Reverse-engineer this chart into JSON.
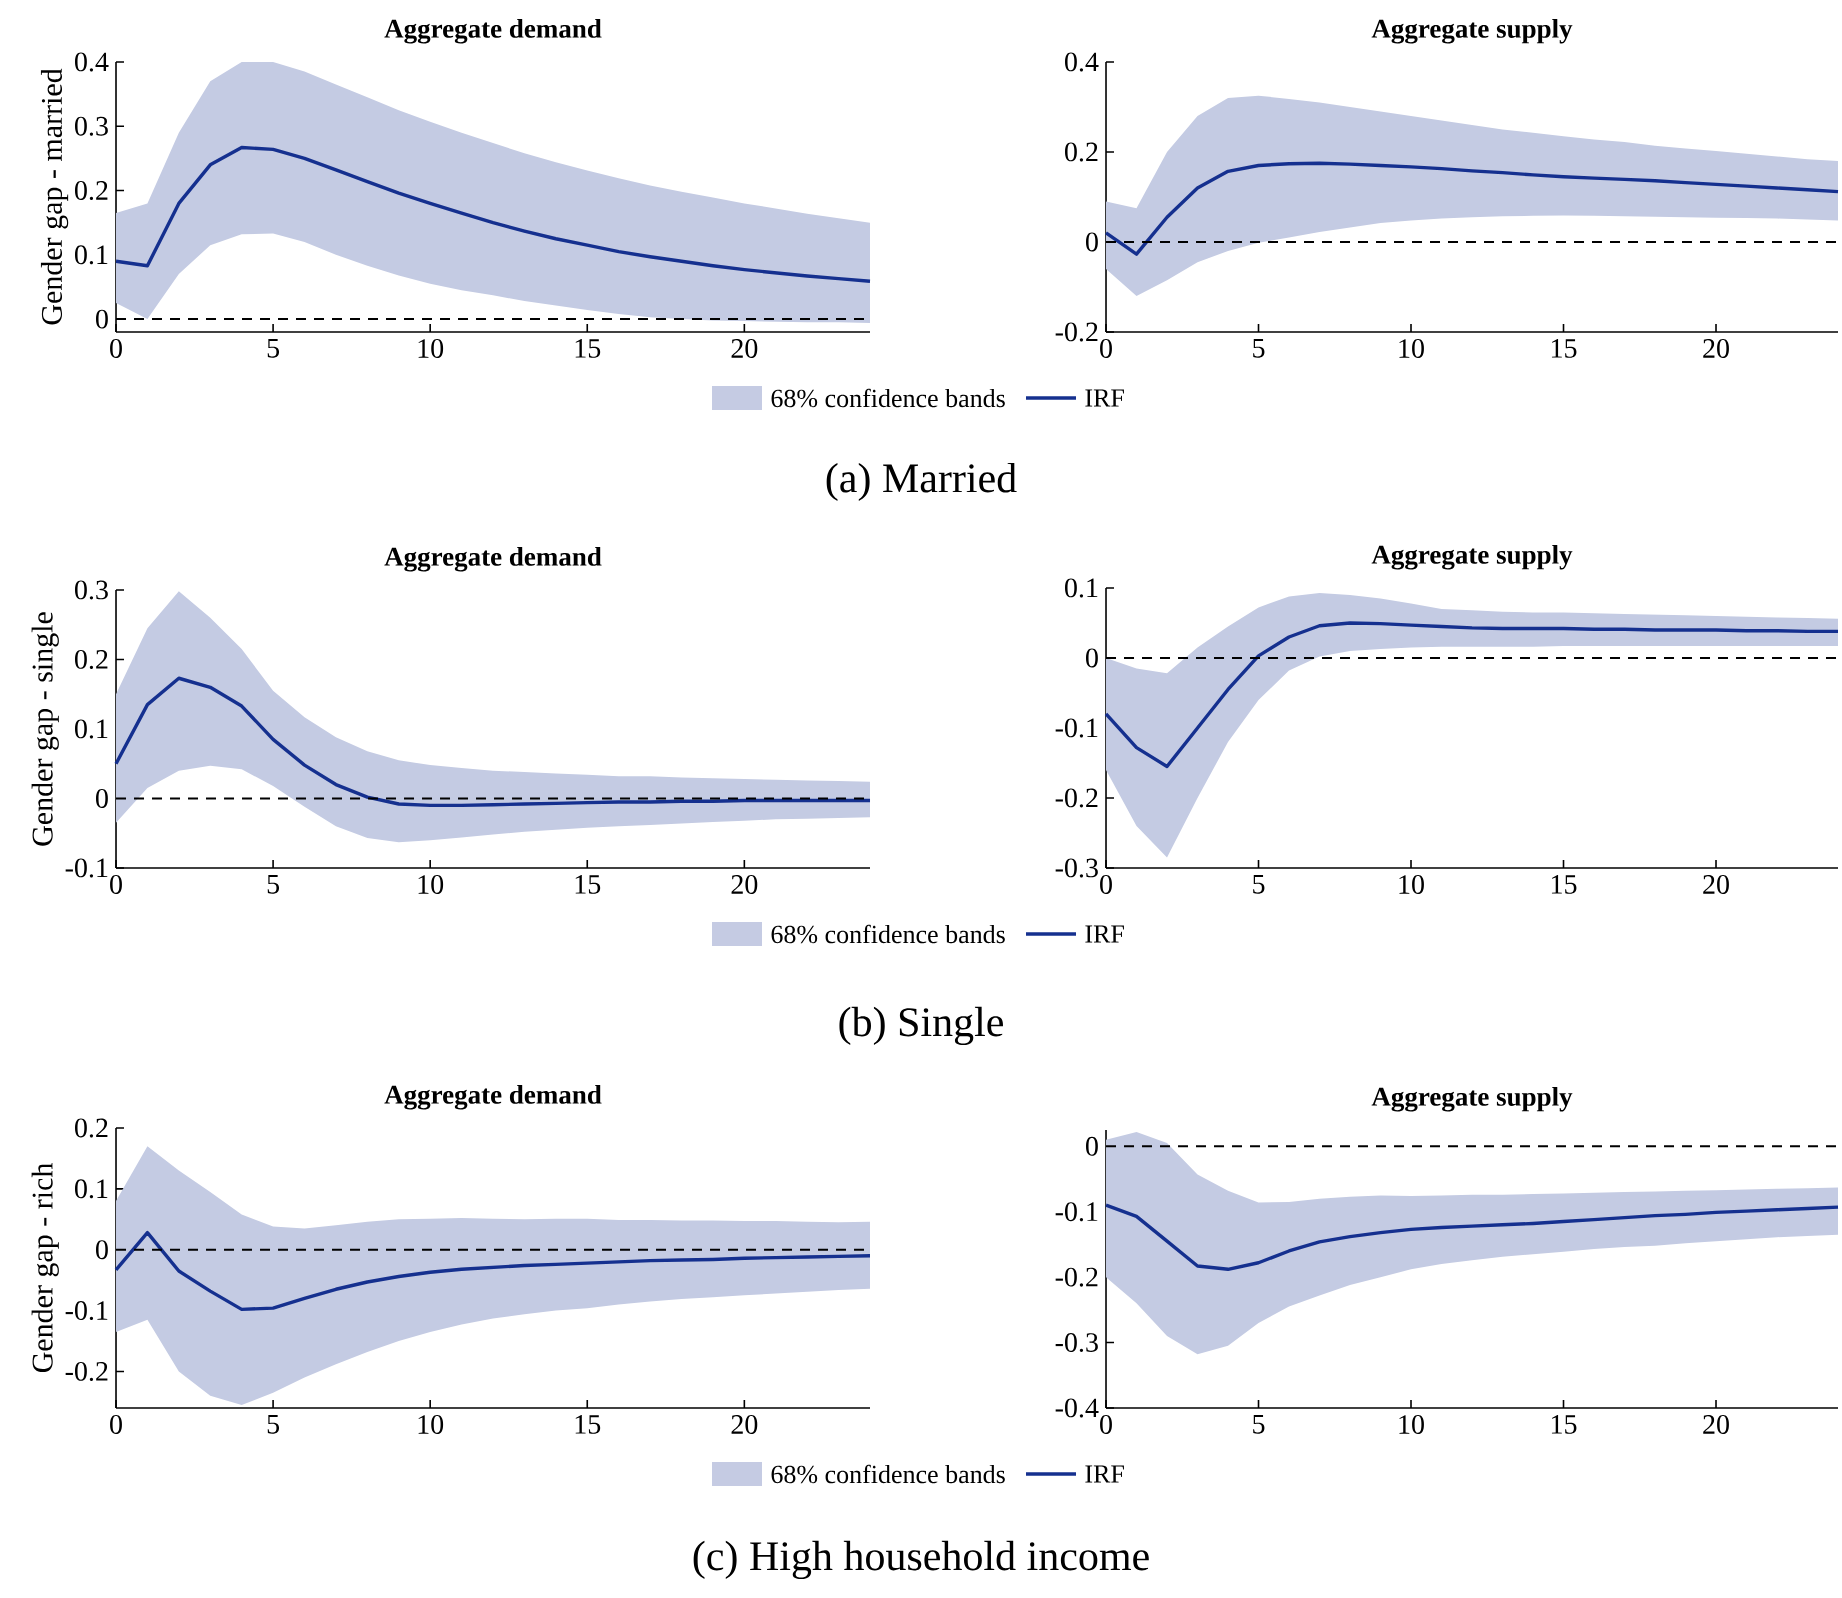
{
  "chart_data": [
    {
      "type": "line",
      "title": "Aggregate demand",
      "ylabel": "Gender gap - married",
      "x": [
        0,
        1,
        2,
        3,
        4,
        5,
        6,
        7,
        8,
        9,
        10,
        11,
        12,
        13,
        14,
        15,
        16,
        17,
        18,
        19,
        20,
        21,
        22,
        23,
        24
      ],
      "xlim": [
        0,
        24
      ],
      "xticks": [
        0,
        5,
        10,
        15,
        20
      ],
      "ylim": [
        -0.02,
        0.4
      ],
      "yticks": [
        0,
        0.1,
        0.2,
        0.3,
        0.4
      ],
      "legend": "bottom",
      "annotations": [
        "68% confidence bands",
        "(a) Married"
      ],
      "ref_lines": [
        {
          "axis": "y",
          "value": 0,
          "color": "#000000",
          "line_style": "dashed"
        }
      ],
      "series": [
        {
          "name": "IRF",
          "type": "line",
          "color": "#15308f",
          "values": [
            0.09,
            0.083,
            0.18,
            0.24,
            0.267,
            0.264,
            0.25,
            0.232,
            0.214,
            0.196,
            0.18,
            0.165,
            0.15,
            0.137,
            0.125,
            0.115,
            0.105,
            0.097,
            0.09,
            0.083,
            0.077,
            0.072,
            0.067,
            0.063,
            0.059
          ],
          "upper": [
            0.165,
            0.18,
            0.29,
            0.37,
            0.4,
            0.4,
            0.385,
            0.365,
            0.345,
            0.325,
            0.307,
            0.29,
            0.274,
            0.258,
            0.244,
            0.231,
            0.219,
            0.208,
            0.198,
            0.189,
            0.18,
            0.172,
            0.164,
            0.157,
            0.15
          ],
          "lower": [
            0.025,
            0.0,
            0.07,
            0.115,
            0.132,
            0.133,
            0.12,
            0.1,
            0.083,
            0.068,
            0.055,
            0.045,
            0.037,
            0.028,
            0.021,
            0.014,
            0.008,
            0.003,
            0.0,
            -0.002,
            -0.003,
            -0.004,
            -0.005,
            -0.005,
            -0.006
          ]
        }
      ]
    },
    {
      "type": "line",
      "title": "Aggregate supply",
      "x": [
        0,
        1,
        2,
        3,
        4,
        5,
        6,
        7,
        8,
        9,
        10,
        11,
        12,
        13,
        14,
        15,
        16,
        17,
        18,
        19,
        20,
        21,
        22,
        23,
        24
      ],
      "xlim": [
        0,
        24
      ],
      "xticks": [
        0,
        5,
        10,
        15,
        20
      ],
      "ylim": [
        -0.2,
        0.4
      ],
      "yticks": [
        -0.2,
        0,
        0.2,
        0.4
      ],
      "ref_lines": [
        {
          "axis": "y",
          "value": 0,
          "color": "#000000",
          "line_style": "dashed"
        }
      ],
      "series": [
        {
          "type": "line",
          "color": "#15308f",
          "values": [
            0.02,
            -0.027,
            0.055,
            0.12,
            0.157,
            0.17,
            0.174,
            0.175,
            0.173,
            0.17,
            0.167,
            0.163,
            0.158,
            0.154,
            0.149,
            0.145,
            0.142,
            0.139,
            0.136,
            0.132,
            0.128,
            0.124,
            0.12,
            0.116,
            0.112
          ],
          "upper": [
            0.09,
            0.075,
            0.2,
            0.28,
            0.32,
            0.325,
            0.318,
            0.31,
            0.3,
            0.29,
            0.28,
            0.27,
            0.26,
            0.25,
            0.243,
            0.235,
            0.228,
            0.222,
            0.214,
            0.208,
            0.202,
            0.196,
            0.19,
            0.184,
            0.18
          ],
          "lower": [
            -0.06,
            -0.12,
            -0.085,
            -0.045,
            -0.02,
            -0.002,
            0.01,
            0.022,
            0.032,
            0.042,
            0.048,
            0.052,
            0.055,
            0.057,
            0.058,
            0.059,
            0.058,
            0.057,
            0.056,
            0.055,
            0.054,
            0.053,
            0.052,
            0.05,
            0.048
          ]
        }
      ]
    },
    {
      "type": "line",
      "title": "Aggregate demand",
      "ylabel": "Gender gap - single",
      "x": [
        0,
        1,
        2,
        3,
        4,
        5,
        6,
        7,
        8,
        9,
        10,
        11,
        12,
        13,
        14,
        15,
        16,
        17,
        18,
        19,
        20,
        21,
        22,
        23,
        24
      ],
      "xlim": [
        0,
        24
      ],
      "xticks": [
        0,
        5,
        10,
        15,
        20
      ],
      "ylim": [
        -0.1,
        0.3
      ],
      "yticks": [
        -0.1,
        0,
        0.1,
        0.2,
        0.3
      ],
      "legend": "bottom",
      "annotations": [
        "68% confidence bands",
        "(b) Single"
      ],
      "ref_lines": [
        {
          "axis": "y",
          "value": 0,
          "color": "#000000",
          "line_style": "dashed"
        }
      ],
      "series": [
        {
          "name": "IRF",
          "type": "line",
          "color": "#15308f",
          "values": [
            0.05,
            0.135,
            0.173,
            0.16,
            0.133,
            0.085,
            0.048,
            0.02,
            0.002,
            -0.008,
            -0.01,
            -0.01,
            -0.009,
            -0.008,
            -0.007,
            -0.006,
            -0.005,
            -0.005,
            -0.004,
            -0.004,
            -0.003,
            -0.003,
            -0.003,
            -0.003,
            -0.003
          ],
          "upper": [
            0.15,
            0.245,
            0.298,
            0.26,
            0.215,
            0.155,
            0.117,
            0.088,
            0.068,
            0.055,
            0.048,
            0.044,
            0.04,
            0.038,
            0.036,
            0.034,
            0.032,
            0.032,
            0.03,
            0.029,
            0.028,
            0.027,
            0.026,
            0.025,
            0.024
          ],
          "lower": [
            -0.035,
            0.015,
            0.04,
            0.047,
            0.042,
            0.018,
            -0.012,
            -0.04,
            -0.057,
            -0.063,
            -0.06,
            -0.056,
            -0.052,
            -0.048,
            -0.045,
            -0.042,
            -0.04,
            -0.038,
            -0.036,
            -0.034,
            -0.032,
            -0.03,
            -0.029,
            -0.028,
            -0.027
          ]
        }
      ]
    },
    {
      "type": "line",
      "title": "Aggregate supply",
      "x": [
        0,
        1,
        2,
        3,
        4,
        5,
        6,
        7,
        8,
        9,
        10,
        11,
        12,
        13,
        14,
        15,
        16,
        17,
        18,
        19,
        20,
        21,
        22,
        23,
        24
      ],
      "xlim": [
        0,
        24
      ],
      "xticks": [
        0,
        5,
        10,
        15,
        20
      ],
      "ylim": [
        -0.3,
        0.1
      ],
      "yticks": [
        -0.3,
        -0.2,
        -0.1,
        0,
        0.1
      ],
      "ref_lines": [
        {
          "axis": "y",
          "value": 0,
          "color": "#000000",
          "line_style": "dashed"
        }
      ],
      "series": [
        {
          "type": "line",
          "color": "#15308f",
          "values": [
            -0.08,
            -0.128,
            -0.155,
            -0.1,
            -0.045,
            0.003,
            0.03,
            0.046,
            0.05,
            0.049,
            0.047,
            0.045,
            0.043,
            0.042,
            0.042,
            0.042,
            0.041,
            0.041,
            0.04,
            0.04,
            0.04,
            0.039,
            0.039,
            0.038,
            0.038
          ],
          "upper": [
            0.0,
            -0.015,
            -0.022,
            0.015,
            0.045,
            0.072,
            0.088,
            0.093,
            0.09,
            0.085,
            0.078,
            0.07,
            0.068,
            0.066,
            0.065,
            0.065,
            0.064,
            0.063,
            0.062,
            0.061,
            0.06,
            0.059,
            0.058,
            0.057,
            0.056
          ],
          "lower": [
            -0.16,
            -0.24,
            -0.285,
            -0.2,
            -0.12,
            -0.06,
            -0.018,
            0.002,
            0.01,
            0.013,
            0.015,
            0.016,
            0.016,
            0.016,
            0.016,
            0.017,
            0.017,
            0.017,
            0.017,
            0.017,
            0.017,
            0.017,
            0.017,
            0.017,
            0.017
          ]
        }
      ]
    },
    {
      "type": "line",
      "title": "Aggregate demand",
      "ylabel": "Gender gap - rich",
      "x": [
        0,
        1,
        2,
        3,
        4,
        5,
        6,
        7,
        8,
        9,
        10,
        11,
        12,
        13,
        14,
        15,
        16,
        17,
        18,
        19,
        20,
        21,
        22,
        23,
        24
      ],
      "xlim": [
        0,
        24
      ],
      "xticks": [
        0,
        5,
        10,
        15,
        20
      ],
      "ylim": [
        -0.26,
        0.2
      ],
      "yticks": [
        -0.2,
        -0.1,
        0,
        0.1,
        0.2
      ],
      "legend": "bottom",
      "annotations": [
        "68% confidence bands",
        "(c) High household income"
      ],
      "ref_lines": [
        {
          "axis": "y",
          "value": 0,
          "color": "#000000",
          "line_style": "dashed"
        }
      ],
      "series": [
        {
          "name": "IRF",
          "type": "line",
          "color": "#15308f",
          "values": [
            -0.033,
            0.028,
            -0.035,
            -0.068,
            -0.098,
            -0.096,
            -0.08,
            -0.065,
            -0.053,
            -0.044,
            -0.037,
            -0.032,
            -0.029,
            -0.026,
            -0.024,
            -0.022,
            -0.02,
            -0.018,
            -0.017,
            -0.016,
            -0.014,
            -0.013,
            -0.012,
            -0.011,
            -0.01
          ],
          "upper": [
            0.08,
            0.17,
            0.13,
            0.095,
            0.058,
            0.038,
            0.035,
            0.04,
            0.046,
            0.05,
            0.051,
            0.052,
            0.051,
            0.05,
            0.051,
            0.051,
            0.049,
            0.049,
            0.048,
            0.048,
            0.047,
            0.047,
            0.046,
            0.045,
            0.046
          ],
          "lower": [
            -0.135,
            -0.115,
            -0.2,
            -0.24,
            -0.255,
            -0.235,
            -0.21,
            -0.188,
            -0.168,
            -0.15,
            -0.135,
            -0.123,
            -0.113,
            -0.106,
            -0.1,
            -0.096,
            -0.09,
            -0.085,
            -0.081,
            -0.078,
            -0.075,
            -0.072,
            -0.069,
            -0.066,
            -0.064
          ]
        }
      ]
    },
    {
      "type": "line",
      "title": "Aggregate supply",
      "x": [
        0,
        1,
        2,
        3,
        4,
        5,
        6,
        7,
        8,
        9,
        10,
        11,
        12,
        13,
        14,
        15,
        16,
        17,
        18,
        19,
        20,
        21,
        22,
        23,
        24
      ],
      "xlim": [
        0,
        24
      ],
      "xticks": [
        0,
        5,
        10,
        15,
        20
      ],
      "ylim": [
        -0.4,
        0.025
      ],
      "yticks": [
        -0.4,
        -0.3,
        -0.2,
        -0.1,
        0
      ],
      "ref_lines": [
        {
          "axis": "y",
          "value": 0,
          "color": "#000000",
          "line_style": "dashed"
        }
      ],
      "series": [
        {
          "type": "line",
          "color": "#15308f",
          "values": [
            -0.09,
            -0.107,
            -0.145,
            -0.183,
            -0.188,
            -0.178,
            -0.16,
            -0.146,
            -0.138,
            -0.132,
            -0.127,
            -0.124,
            -0.122,
            -0.12,
            -0.118,
            -0.115,
            -0.112,
            -0.109,
            -0.106,
            -0.104,
            -0.101,
            -0.099,
            -0.097,
            -0.095,
            -0.093
          ],
          "upper": [
            0.01,
            0.022,
            0.005,
            -0.043,
            -0.068,
            -0.086,
            -0.085,
            -0.08,
            -0.077,
            -0.075,
            -0.076,
            -0.075,
            -0.074,
            -0.074,
            -0.073,
            -0.072,
            -0.071,
            -0.07,
            -0.069,
            -0.068,
            -0.067,
            -0.066,
            -0.065,
            -0.064,
            -0.063
          ],
          "lower": [
            -0.2,
            -0.24,
            -0.29,
            -0.318,
            -0.305,
            -0.27,
            -0.245,
            -0.228,
            -0.212,
            -0.2,
            -0.188,
            -0.18,
            -0.174,
            -0.169,
            -0.165,
            -0.161,
            -0.157,
            -0.154,
            -0.152,
            -0.148,
            -0.145,
            -0.142,
            -0.139,
            -0.137,
            -0.135
          ]
        }
      ]
    }
  ]
}
